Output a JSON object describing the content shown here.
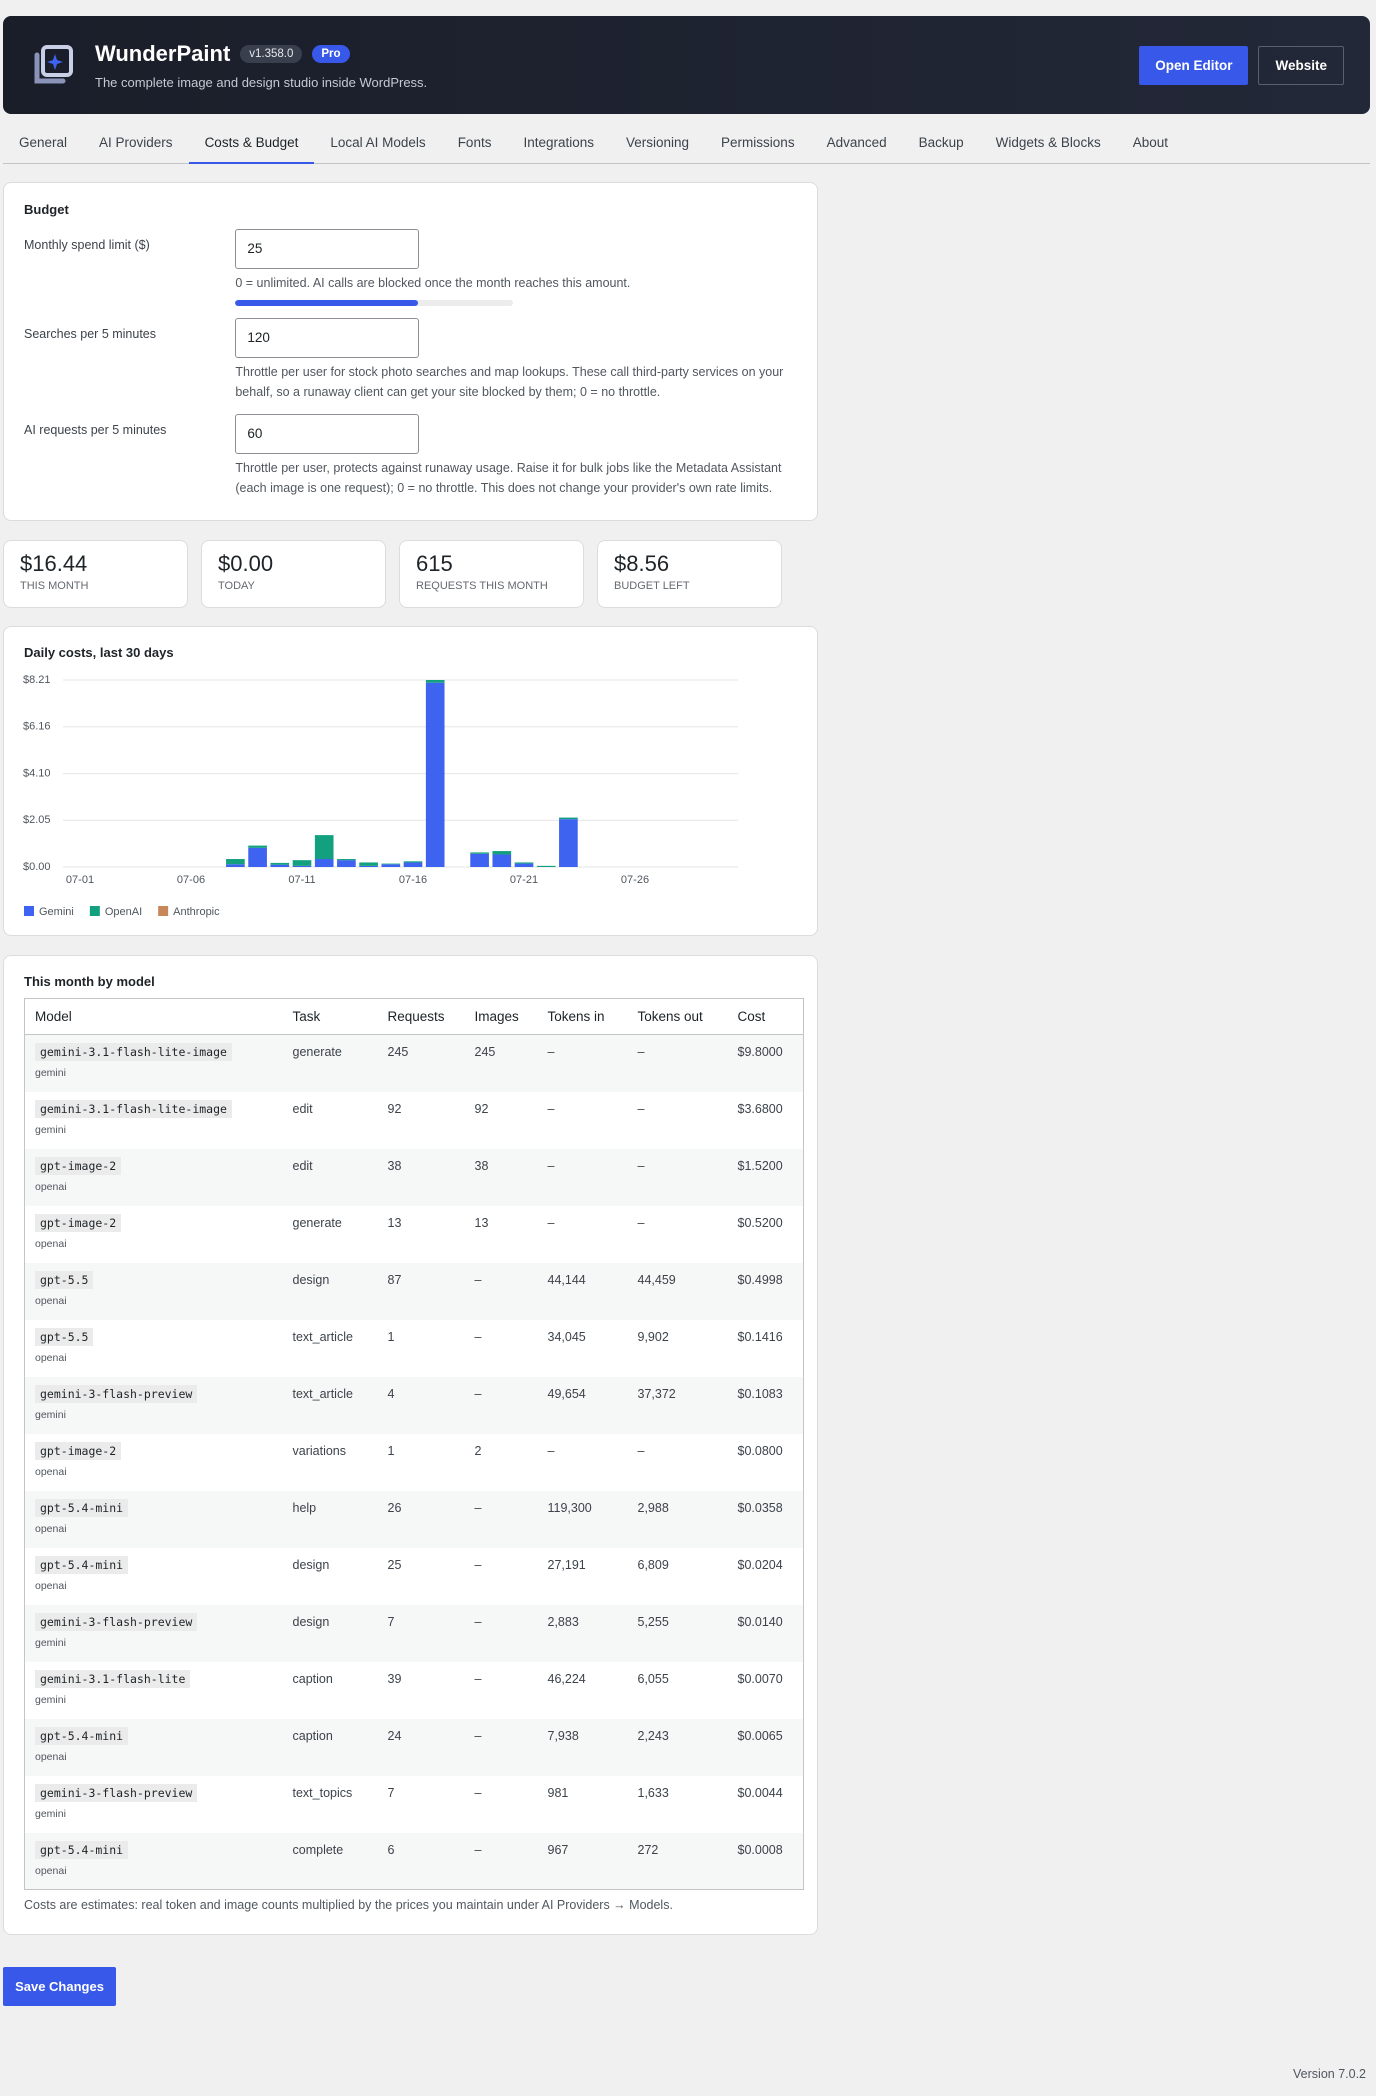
{
  "header": {
    "title": "WunderPaint",
    "version": "v1.358.0",
    "badge": "Pro",
    "subtitle": "The complete image and design studio inside WordPress.",
    "buttons": [
      "Open Editor",
      "Website"
    ]
  },
  "tabs": [
    "General",
    "AI Providers",
    "Costs & Budget",
    "Local AI Models",
    "Fonts",
    "Integrations",
    "Versioning",
    "Permissions",
    "Advanced",
    "Backup",
    "Widgets & Blocks",
    "About"
  ],
  "active_tab": 2,
  "budget": {
    "title": "Budget",
    "fields": [
      {
        "label": "Monthly spend limit ($)",
        "value": "25",
        "help": "0 = unlimited. AI calls are blocked once the month reaches this amount."
      },
      {
        "label": "Searches per 5 minutes",
        "value": "120",
        "help": "Throttle per user for stock photo searches and map lookups. These call third-party services on your behalf, so a runaway client can get your site blocked by them; 0 = no throttle."
      },
      {
        "label": "AI requests per 5 minutes",
        "value": "60",
        "help": "Throttle per user, protects against runaway usage. Raise it for bulk jobs like the Metadata Assistant (each image is one request); 0 = no throttle. This does not change your provider's own rate limits."
      }
    ]
  },
  "stats": [
    {
      "value": "$16.44",
      "label": "THIS MONTH"
    },
    {
      "value": "$0.00",
      "label": "TODAY"
    },
    {
      "value": "615",
      "label": "REQUESTS THIS MONTH"
    },
    {
      "value": "$8.56",
      "label": "BUDGET LEFT"
    }
  ],
  "chart_data": {
    "type": "stacked_bar",
    "title": "Daily costs, last 30 days",
    "categories": [
      "07-01",
      null,
      null,
      null,
      null,
      "07-06",
      null,
      null,
      null,
      null,
      "07-11",
      null,
      null,
      null,
      null,
      "07-16",
      null,
      null,
      null,
      null,
      "07-21",
      null,
      null,
      null,
      null,
      "07-26",
      null,
      null,
      null,
      null
    ],
    "series": [
      {
        "name": "Gemini",
        "color": "#3d63f0",
        "values": [
          0,
          0,
          0,
          0,
          0,
          0,
          0,
          0.12,
          0.84,
          0.1,
          0.05,
          0.35,
          0.3,
          0.05,
          0.12,
          0.2,
          8.09,
          0,
          0.58,
          0.55,
          0.15,
          0,
          2.1,
          0,
          0,
          0,
          0,
          0,
          0,
          0
        ]
      },
      {
        "name": "OpenAI",
        "color": "#13a07f",
        "values": [
          0,
          0,
          0,
          0,
          0,
          0,
          0,
          0.23,
          0.1,
          0.08,
          0.25,
          1.05,
          0.05,
          0.15,
          0.03,
          0.05,
          0.12,
          0,
          0.06,
          0.15,
          0.05,
          0.05,
          0.07,
          0,
          0,
          0,
          0,
          0,
          0,
          0
        ]
      },
      {
        "name": "Anthropic",
        "color": "#c8875a",
        "values": [
          0,
          0,
          0,
          0,
          0,
          0,
          0,
          0,
          0,
          0,
          0,
          0,
          0,
          0,
          0,
          0,
          0,
          0,
          0,
          0,
          0,
          0,
          0,
          0,
          0,
          0,
          0,
          0,
          0,
          0
        ]
      }
    ],
    "ylim": [
      0,
      8.21
    ],
    "yticks": [
      {
        "value": 0,
        "label": "$0.00"
      },
      {
        "value": 2.05,
        "label": "$2.05"
      },
      {
        "value": 4.1,
        "label": "$4.10"
      },
      {
        "value": 6.16,
        "label": "$6.16"
      },
      {
        "value": 8.21,
        "label": "$8.21"
      }
    ],
    "grid": true,
    "legend": "bottom"
  },
  "models_table": {
    "title": "This month by model",
    "columns": [
      "Model",
      "Task",
      "Requests",
      "Images",
      "Tokens in",
      "Tokens out",
      "Cost"
    ],
    "rows": [
      {
        "model": "gemini-3.1-flash-lite-image",
        "provider": "gemini",
        "task": "generate",
        "requests": "245",
        "images": "245",
        "tokens_in": "–",
        "tokens_out": "–",
        "cost": "$9.8000"
      },
      {
        "model": "gemini-3.1-flash-lite-image",
        "provider": "gemini",
        "task": "edit",
        "requests": "92",
        "images": "92",
        "tokens_in": "–",
        "tokens_out": "–",
        "cost": "$3.6800"
      },
      {
        "model": "gpt-image-2",
        "provider": "openai",
        "task": "edit",
        "requests": "38",
        "images": "38",
        "tokens_in": "–",
        "tokens_out": "–",
        "cost": "$1.5200"
      },
      {
        "model": "gpt-image-2",
        "provider": "openai",
        "task": "generate",
        "requests": "13",
        "images": "13",
        "tokens_in": "–",
        "tokens_out": "–",
        "cost": "$0.5200"
      },
      {
        "model": "gpt-5.5",
        "provider": "openai",
        "task": "design",
        "requests": "87",
        "images": "–",
        "tokens_in": "44,144",
        "tokens_out": "44,459",
        "cost": "$0.4998"
      },
      {
        "model": "gpt-5.5",
        "provider": "openai",
        "task": "text_article",
        "requests": "1",
        "images": "–",
        "tokens_in": "34,045",
        "tokens_out": "9,902",
        "cost": "$0.1416"
      },
      {
        "model": "gemini-3-flash-preview",
        "provider": "gemini",
        "task": "text_article",
        "requests": "4",
        "images": "–",
        "tokens_in": "49,654",
        "tokens_out": "37,372",
        "cost": "$0.1083"
      },
      {
        "model": "gpt-image-2",
        "provider": "openai",
        "task": "variations",
        "requests": "1",
        "images": "2",
        "tokens_in": "–",
        "tokens_out": "–",
        "cost": "$0.0800"
      },
      {
        "model": "gpt-5.4-mini",
        "provider": "openai",
        "task": "help",
        "requests": "26",
        "images": "–",
        "tokens_in": "119,300",
        "tokens_out": "2,988",
        "cost": "$0.0358"
      },
      {
        "model": "gpt-5.4-mini",
        "provider": "openai",
        "task": "design",
        "requests": "25",
        "images": "–",
        "tokens_in": "27,191",
        "tokens_out": "6,809",
        "cost": "$0.0204"
      },
      {
        "model": "gemini-3-flash-preview",
        "provider": "gemini",
        "task": "design",
        "requests": "7",
        "images": "–",
        "tokens_in": "2,883",
        "tokens_out": "5,255",
        "cost": "$0.0140"
      },
      {
        "model": "gemini-3.1-flash-lite",
        "provider": "gemini",
        "task": "caption",
        "requests": "39",
        "images": "–",
        "tokens_in": "46,224",
        "tokens_out": "6,055",
        "cost": "$0.0070"
      },
      {
        "model": "gpt-5.4-mini",
        "provider": "openai",
        "task": "caption",
        "requests": "24",
        "images": "–",
        "tokens_in": "7,938",
        "tokens_out": "2,243",
        "cost": "$0.0065"
      },
      {
        "model": "gemini-3-flash-preview",
        "provider": "gemini",
        "task": "text_topics",
        "requests": "7",
        "images": "–",
        "tokens_in": "981",
        "tokens_out": "1,633",
        "cost": "$0.0044"
      },
      {
        "model": "gpt-5.4-mini",
        "provider": "openai",
        "task": "complete",
        "requests": "6",
        "images": "–",
        "tokens_in": "967",
        "tokens_out": "272",
        "cost": "$0.0008"
      }
    ],
    "note": "Costs are estimates: real token and image counts multiplied by the prices you maintain under AI Providers → Models."
  },
  "save_button": "Save Changes",
  "version": "Version 7.0.2"
}
